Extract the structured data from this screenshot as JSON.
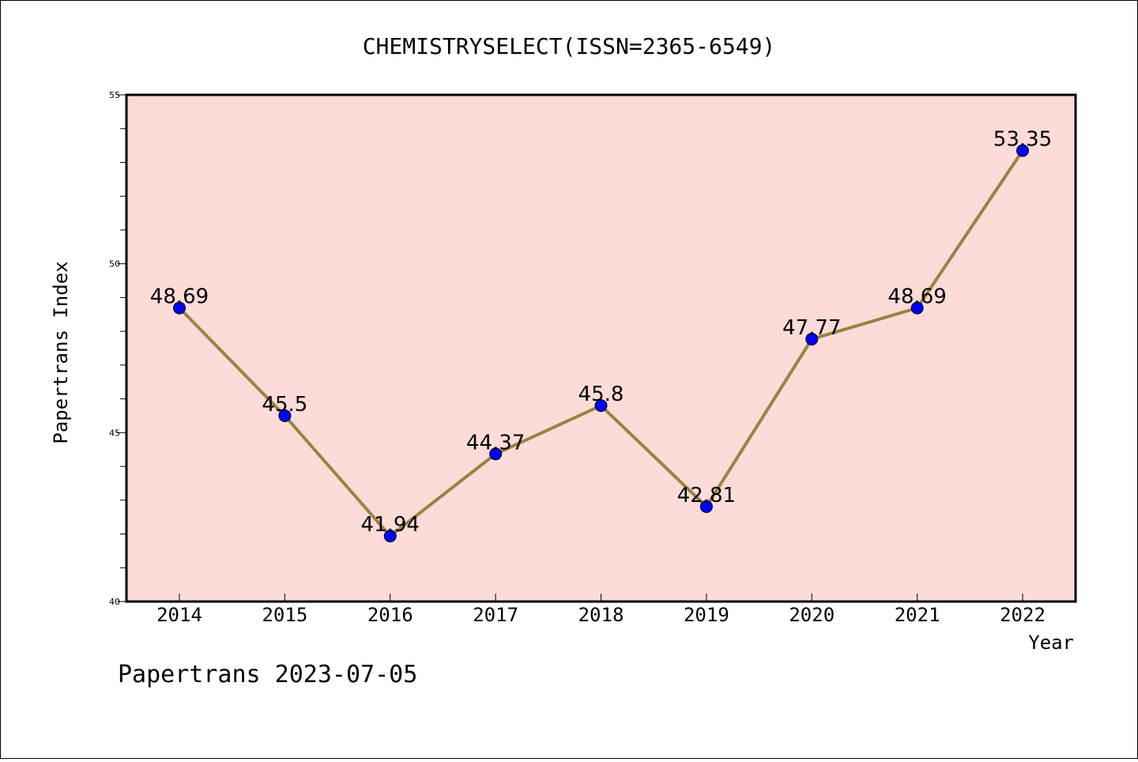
{
  "chart_data": {
    "type": "line",
    "title": "CHEMISTRYSELECT(ISSN=2365-6549)",
    "xlabel": "Year",
    "ylabel": "Papertrans Index",
    "x": [
      "2014",
      "2015",
      "2016",
      "2017",
      "2018",
      "2019",
      "2020",
      "2021",
      "2022"
    ],
    "series": [
      {
        "values": [
          48.69,
          45.5,
          41.94,
          44.37,
          45.8,
          42.81,
          47.77,
          48.69,
          53.35
        ],
        "labels": [
          "48.69",
          "45.5",
          "41.94",
          "44.37",
          "45.8",
          "42.81",
          "47.77",
          "48.69",
          "53.35"
        ]
      }
    ],
    "ylim": [
      40,
      55
    ],
    "yticks": [
      "40",
      "45",
      "50",
      "55"
    ],
    "grid": false,
    "legend": "none",
    "colors": {
      "plot_background": "#fddbd9",
      "line": "#9a8340",
      "marker": "#0000ff"
    }
  },
  "footer": {
    "text": "Papertrans 2023-07-05"
  }
}
